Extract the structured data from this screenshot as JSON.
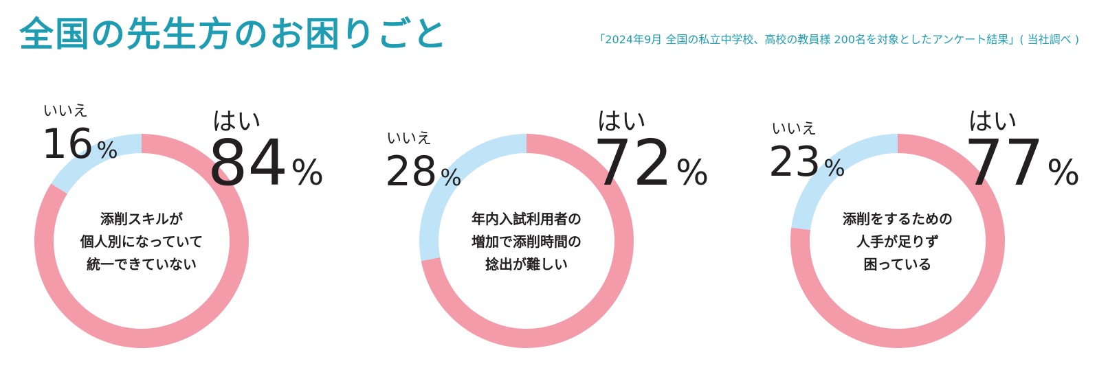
{
  "title": "全国の先生方のお困りごと",
  "source": "「2024年9月 全国の私立中学校、高校の教員様 200名を対象としたアンケート結果」( 当社調べ )",
  "colors": {
    "yes": "#f39ba8",
    "no": "#bfe4f7",
    "accent": "#1e9cb2"
  },
  "chart_data": [
    {
      "type": "pie",
      "variant": "donut",
      "center_text": "添削スキルが\n個人別になっていて\n統一できていない",
      "slices": [
        {
          "label": "はい",
          "value": 84,
          "display": "84",
          "unit": "%"
        },
        {
          "label": "いいえ",
          "value": 16,
          "display": "16",
          "unit": "%"
        }
      ]
    },
    {
      "type": "pie",
      "variant": "donut",
      "center_text": "年内入試利用者の\n増加で添削時間の\n捻出が難しい",
      "slices": [
        {
          "label": "はい",
          "value": 72,
          "display": "72",
          "unit": "%"
        },
        {
          "label": "いいえ",
          "value": 28,
          "display": "28",
          "unit": "%"
        }
      ]
    },
    {
      "type": "pie",
      "variant": "donut",
      "center_text": "添削をするための\n人手が足りず\n困っている",
      "slices": [
        {
          "label": "はい",
          "value": 77,
          "display": "77",
          "unit": "%"
        },
        {
          "label": "いいえ",
          "value": 23,
          "display": "23",
          "unit": "%"
        }
      ]
    }
  ]
}
